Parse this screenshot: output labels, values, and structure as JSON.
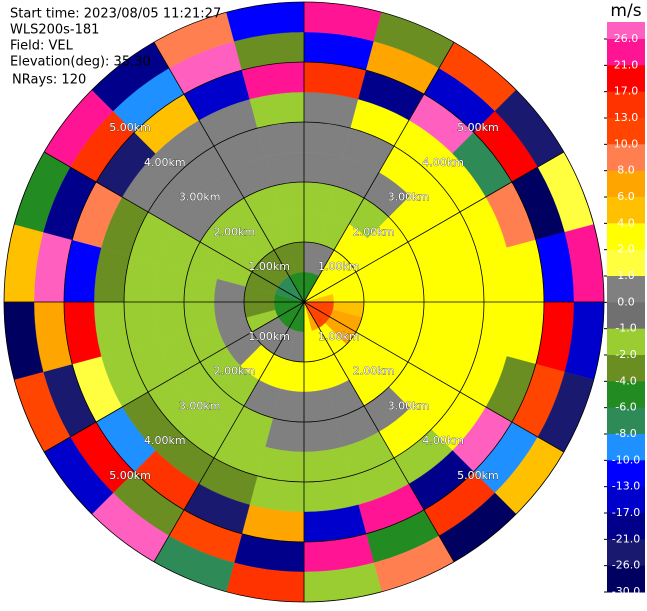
{
  "chart_data": {
    "type": "ppi",
    "header": [
      "Start time: 2023/08/05 11:21:27",
      "WLS200s-181",
      "Field: VEL",
      "Elevation(deg): 35.30",
      "NRays: 120"
    ],
    "rlim": [
      0,
      5
    ],
    "rticks": [
      {
        "value": 1,
        "label": "1.00km"
      },
      {
        "value": 2,
        "label": "2.00km"
      },
      {
        "value": 3,
        "label": "3.00km"
      },
      {
        "value": 4,
        "label": "4.00km"
      },
      {
        "value": 5,
        "label": "5.00km"
      }
    ],
    "field": {
      "values": [
        [
          -5,
          0,
          -1.5,
          -1.5,
          0,
          0,
          0.5,
          15,
          -12,
          23
        ],
        [
          -5,
          0,
          -1.5,
          -1.5,
          0,
          0,
          3,
          -20,
          7,
          -3
        ],
        [
          3,
          3,
          3,
          -1.5,
          0,
          3,
          3,
          28,
          -15,
          11
        ],
        [
          3,
          3,
          3,
          3,
          3,
          3,
          3,
          -7,
          19,
          -24
        ],
        [
          3,
          3,
          3,
          3,
          3,
          3,
          3,
          9,
          -28,
          1.5
        ],
        [
          5,
          3,
          3,
          3,
          3,
          3,
          3,
          3,
          -11,
          24
        ],
        [
          11,
          5,
          3,
          3,
          3,
          3,
          3,
          3,
          18,
          -16
        ],
        [
          11,
          7,
          3,
          3,
          3,
          3,
          3,
          -3,
          12,
          -22
        ],
        [
          11,
          7,
          3,
          3,
          3,
          3,
          3,
          27,
          -9,
          5
        ],
        [
          11,
          3,
          3,
          3,
          0,
          3,
          -1.5,
          -18,
          14,
          -27
        ],
        [
          7,
          3,
          3,
          0,
          0,
          -1.5,
          -1.5,
          22,
          -5,
          9
        ],
        [
          3,
          3,
          3,
          0,
          0,
          -1.5,
          -1.5,
          -14,
          25,
          -2
        ],
        [
          -5,
          0,
          3,
          0,
          0,
          -1.5,
          -1.5,
          6,
          -19,
          16
        ],
        [
          -5,
          0,
          3,
          0,
          -1.5,
          -1.5,
          -3,
          -25,
          11,
          -8
        ],
        [
          -5,
          0,
          3,
          -1.5,
          -1.5,
          -1.5,
          -3,
          15,
          -3,
          29
        ],
        [
          -5,
          0,
          0,
          -1.5,
          -1.5,
          -1.5,
          -3,
          -9,
          20,
          -15
        ],
        [
          -5,
          -1.5,
          0,
          -1.5,
          -1.5,
          -1.5,
          -1.5,
          1.5,
          -23,
          12
        ],
        [
          -5,
          -3,
          0,
          -1.5,
          -1.5,
          -1.5,
          -1.5,
          18,
          7,
          -29
        ],
        [
          -5,
          -3,
          0,
          -1.5,
          -1.5,
          -1.5,
          -3,
          -12,
          26,
          4
        ],
        [
          -7,
          -3,
          -1.5,
          -1.5,
          -1.5,
          -1.5,
          -3,
          9,
          -18,
          -6
        ],
        [
          -7,
          -3,
          -1.5,
          -1.5,
          0,
          0,
          0,
          -26,
          13,
          22
        ],
        [
          -7,
          -3,
          -1.5,
          -1.5,
          0,
          0,
          0,
          5,
          -10,
          -20
        ],
        [
          -5,
          -3,
          -1.5,
          -1.5,
          0,
          0,
          0,
          -16,
          28,
          8
        ],
        [
          -5,
          -3,
          -1.5,
          -1.5,
          0,
          0,
          -1.5,
          21,
          -4,
          -13
        ]
      ]
    },
    "colorbar": {
      "label": "m/s",
      "ticks": [
        {
          "value": 26,
          "label": "26.0"
        },
        {
          "value": 21,
          "label": "21.0"
        },
        {
          "value": 17,
          "label": "17.0"
        },
        {
          "value": 13,
          "label": "13.0"
        },
        {
          "value": 10,
          "label": "10.0"
        },
        {
          "value": 8,
          "label": "8.0"
        },
        {
          "value": 6,
          "label": "6.0"
        },
        {
          "value": 4,
          "label": "4.0"
        },
        {
          "value": 2,
          "label": "2.0"
        },
        {
          "value": 1,
          "label": "1.0"
        },
        {
          "value": 0,
          "label": "0.0"
        },
        {
          "value": -1,
          "label": "-1.0"
        },
        {
          "value": -2,
          "label": "-2.0"
        },
        {
          "value": -4,
          "label": "-4.0"
        },
        {
          "value": -6,
          "label": "-6.0"
        },
        {
          "value": -8,
          "label": "-8.0"
        },
        {
          "value": -10,
          "label": "-10.0"
        },
        {
          "value": -13,
          "label": "-13.0"
        },
        {
          "value": -17,
          "label": "-17.0"
        },
        {
          "value": -21,
          "label": "-21.0"
        },
        {
          "value": -26,
          "label": "-26.0"
        },
        {
          "value": -30,
          "label": "-30.0"
        }
      ],
      "colors": [
        "#ff5fbf",
        "#ff1493",
        "#ff0000",
        "#ff3300",
        "#ff4500",
        "#ff7f50",
        "#ffa500",
        "#ffc000",
        "#ffff00",
        "#ffff40",
        "#808080",
        "#707070",
        "#9acd32",
        "#6b8e23",
        "#228b22",
        "#2e8b57",
        "#1e90ff",
        "#0000ff",
        "#0000cd",
        "#00008b",
        "#191970",
        "#000060"
      ]
    }
  }
}
